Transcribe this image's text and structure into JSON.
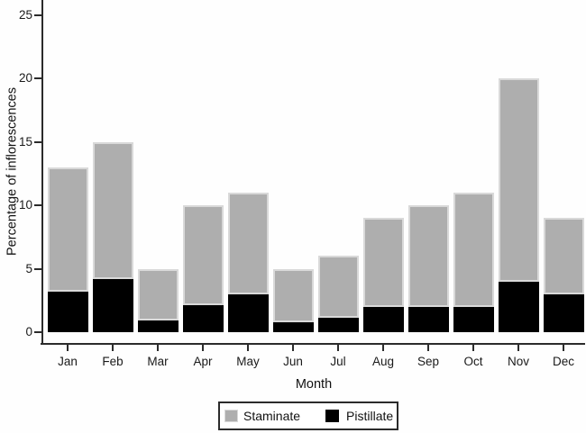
{
  "chart_data": {
    "type": "bar",
    "stacked": true,
    "title": "",
    "xlabel": "Month",
    "ylabel": "Percentage of inflorescences",
    "categories": [
      "Jan",
      "Feb",
      "Mar",
      "Apr",
      "May",
      "Jun",
      "Jul",
      "Aug",
      "Sep",
      "Oct",
      "Nov",
      "Dec"
    ],
    "series": [
      {
        "name": "Staminate",
        "color": "#aeaeae",
        "values": [
          9.8,
          10.8,
          4.1,
          7.9,
          8.0,
          4.2,
          4.9,
          7.0,
          8.0,
          9.0,
          16.0,
          6.0
        ]
      },
      {
        "name": "Pistillate",
        "color": "#000000",
        "values": [
          3.2,
          4.2,
          0.9,
          2.1,
          3.0,
          0.8,
          1.1,
          2.0,
          2.0,
          2.0,
          4.0,
          3.0
        ]
      }
    ],
    "stack_totals": [
      13,
      15,
      5,
      10,
      11,
      5,
      6,
      9,
      10,
      11,
      20,
      9
    ],
    "yticks": [
      0,
      5,
      10,
      15,
      20,
      25
    ],
    "ylim": [
      0,
      26
    ],
    "grid": false,
    "legend_position": "bottom-center"
  },
  "colors": {
    "axis": "#2b2b2b",
    "staminate_fill": "#aeaeae",
    "staminate_edge": "#d9d9d9",
    "pistillate_fill": "#000000",
    "background": "#fefefe"
  }
}
